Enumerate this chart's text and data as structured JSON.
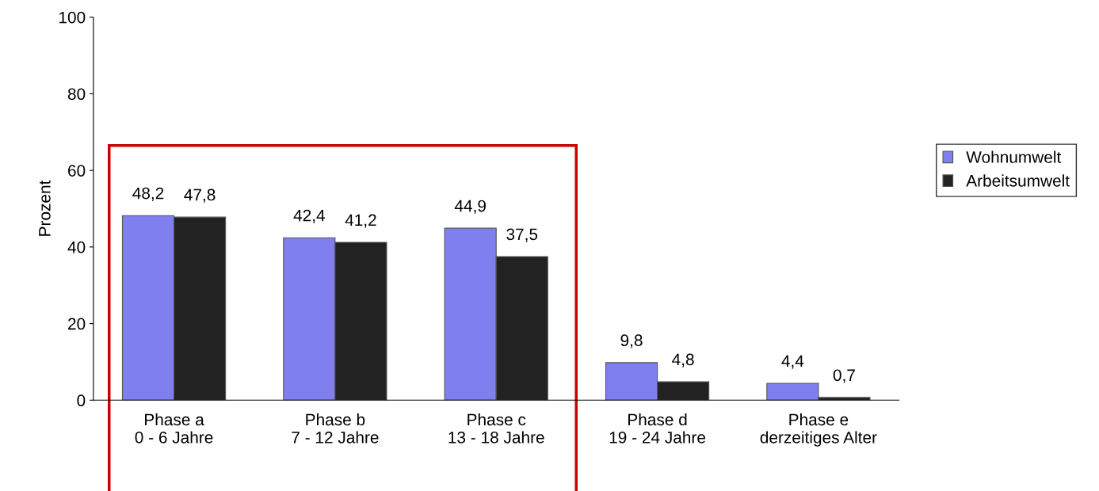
{
  "chart_data": {
    "type": "bar",
    "ylabel": "Prozent",
    "categories": [
      "Phase a\n0 - 6 Jahre",
      "Phase b\n7 - 12 Jahre",
      "Phase c\n13 - 18 Jahre",
      "Phase d\n19 - 24 Jahre",
      "Phase e\nderzeitiges Alter"
    ],
    "series": [
      {
        "name": "Wohnumwelt",
        "color": "#7f7fef",
        "values": [
          48.2,
          42.4,
          44.9,
          9.8,
          4.4
        ],
        "value_labels": [
          "48,2",
          "42,4",
          "44,9",
          "9,8",
          "4,4"
        ]
      },
      {
        "name": "Arbeitsumwelt",
        "color": "#222222",
        "values": [
          47.8,
          41.2,
          37.5,
          4.8,
          0.7
        ],
        "value_labels": [
          "47,8",
          "41,2",
          "37,5",
          "4,8",
          "0,7"
        ]
      }
    ],
    "ylim": [
      0,
      100
    ],
    "yticks": [
      0,
      20,
      40,
      60,
      80,
      100
    ],
    "grid": false,
    "legend": "right"
  }
}
